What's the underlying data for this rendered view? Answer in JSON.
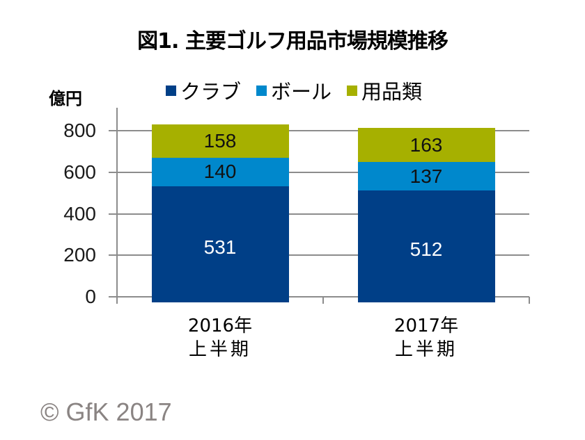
{
  "title": "図1. 主要ゴルフ用品市場規模推移",
  "footer": "© GfK 2017",
  "colors": {
    "club": "#003f87",
    "ball": "#0088cc",
    "goods": "#a6b000",
    "grid": "#8c8c8c",
    "footer_text": "#8a8483"
  },
  "chart_data": {
    "type": "bar",
    "stacked": true,
    "title": "図1. 主要ゴルフ用品市場規模推移",
    "xlabel": "",
    "ylabel": "億円",
    "ylim": [
      0,
      800
    ],
    "yticks": [
      "0",
      "200",
      "400",
      "600",
      "800"
    ],
    "grid": true,
    "legend_position": "top",
    "categories": [
      "2016年\n上半期",
      "2017年\n上半期"
    ],
    "category_lines": [
      [
        "2016年",
        "上半期"
      ],
      [
        "2017年",
        "上半期"
      ]
    ],
    "series": [
      {
        "name": "クラブ",
        "color": "#003f87",
        "values": [
          531,
          512
        ],
        "labels": [
          "531",
          "512"
        ]
      },
      {
        "name": "ボール",
        "color": "#0088cc",
        "values": [
          140,
          137
        ],
        "labels": [
          "140",
          "137"
        ]
      },
      {
        "name": "用品類",
        "color": "#a6b000",
        "values": [
          158,
          163
        ],
        "labels": [
          "158",
          "163"
        ]
      }
    ],
    "annotations": [
      "© GfK 2017"
    ]
  }
}
